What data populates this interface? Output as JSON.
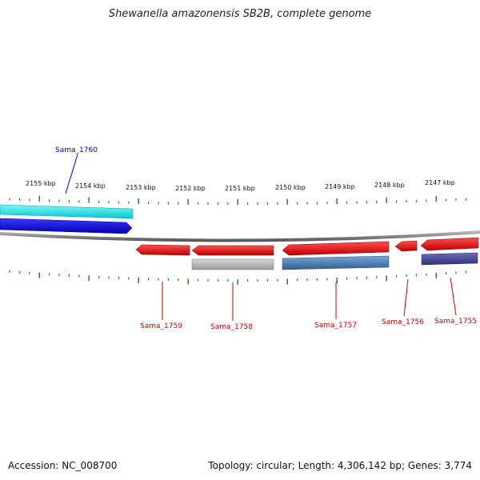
{
  "title": "Shewanella amazonensis SB2B, complete genome",
  "footer": {
    "accession": "Accession: NC_008700",
    "summary": "Topology: circular; Length: 4,306,142 bp; Genes: 3,774"
  },
  "ticks": [
    "2155 kbp",
    "2154 kbp",
    "2153 kbp",
    "2152 kbp",
    "2151 kbp",
    "2150 kbp",
    "2149 kbp",
    "2148 kbp",
    "2147 kbp"
  ],
  "genes_top": [
    {
      "label": "Sama_1760",
      "color": "#0000cc"
    }
  ],
  "genes_bottom": [
    {
      "label": "Sama_1759",
      "color": "#cc0000"
    },
    {
      "label": "Sama_1758",
      "color": "#cc0000"
    },
    {
      "label": "Sama_1757",
      "color": "#cc0000"
    },
    {
      "label": "Sama_1756",
      "color": "#cc0000"
    },
    {
      "label": "Sama_1755",
      "color": "#cc0000"
    }
  ],
  "colors": {
    "forward_cds": "#0000ee",
    "forward_rna": "#00e5e5",
    "reverse_cds": "#ee1111",
    "backbone": "#888888",
    "tick": "#1a8a1a",
    "cog_grey": "#b0b0b0",
    "cog_steelblue": "#4a7fb5",
    "cog_slate": "#4a4a9a"
  }
}
